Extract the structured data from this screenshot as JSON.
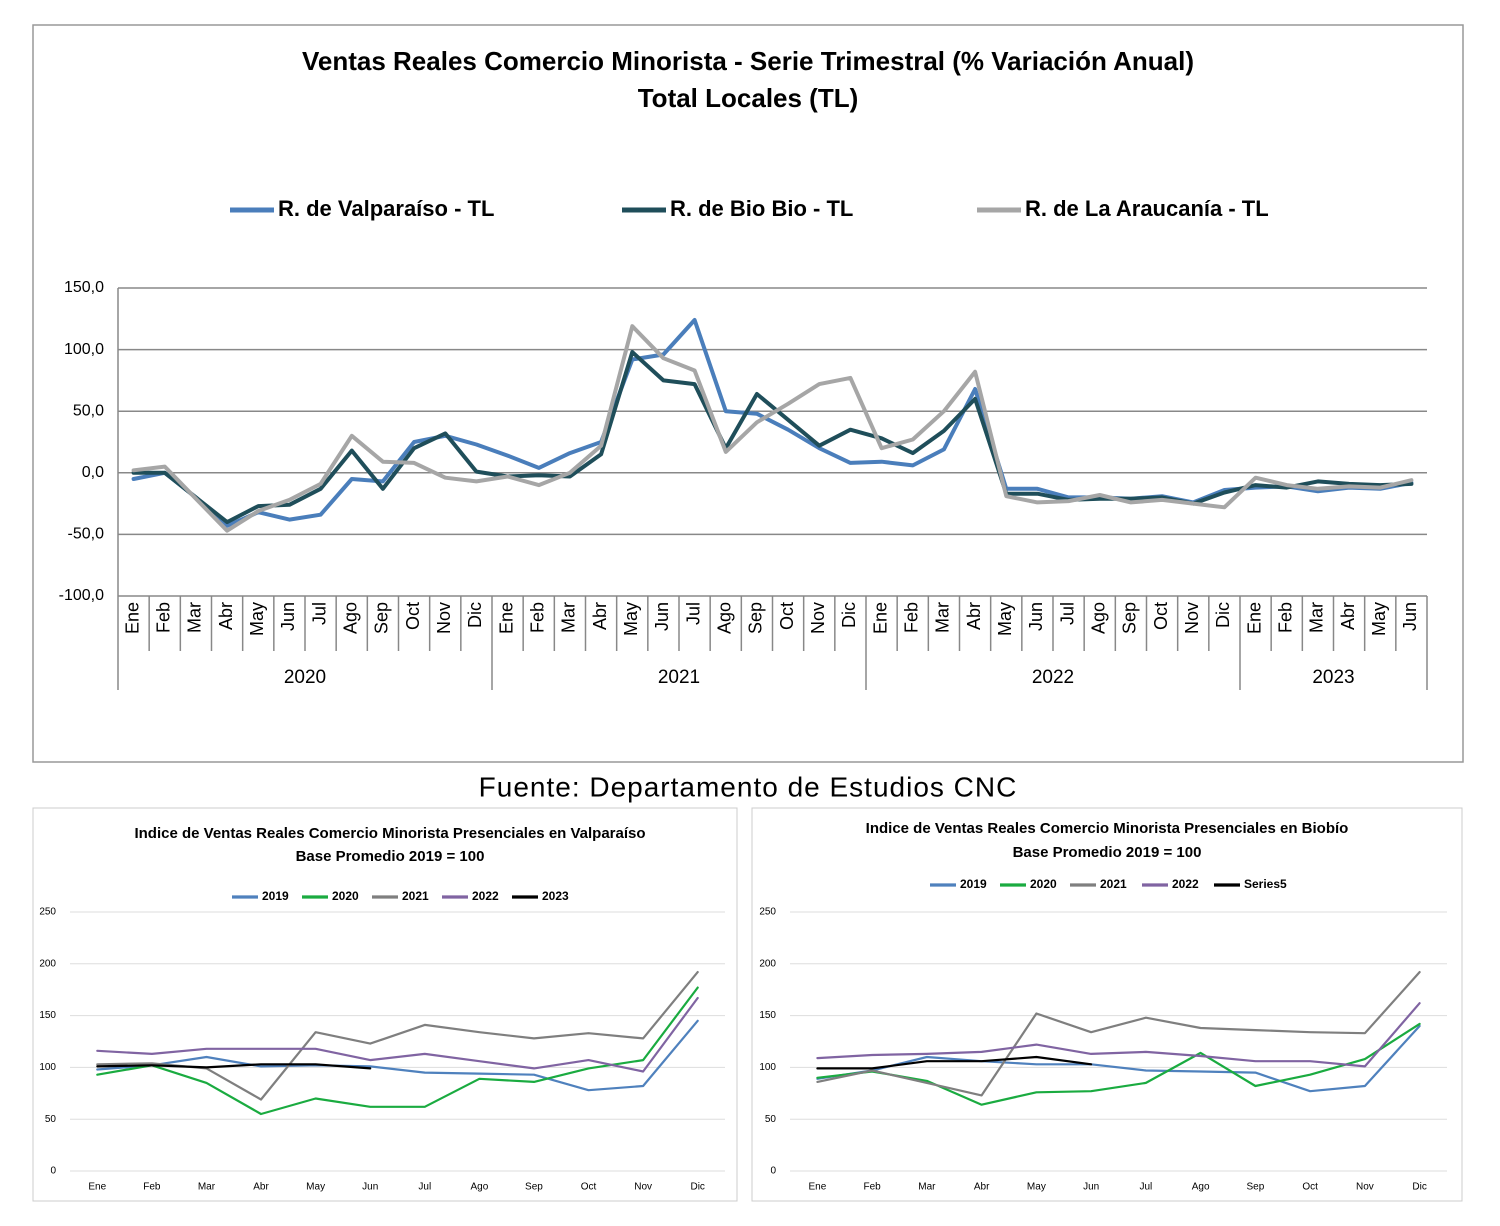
{
  "source": "Fuente: Departamento de Estudios CNC",
  "chart_data": [
    {
      "type": "line",
      "title": "Ventas Reales Comercio Minorista - Serie Trimestral (% Variación Anual)",
      "subtitle": "Total Locales (TL)",
      "category_groups": [
        {
          "label": "2020",
          "categories": [
            "Ene",
            "Feb",
            "Mar",
            "Abr",
            "May",
            "Jun",
            "Jul",
            "Ago",
            "Sep",
            "Oct",
            "Nov",
            "Dic"
          ]
        },
        {
          "label": "2021",
          "categories": [
            "Ene",
            "Feb",
            "Mar",
            "Abr",
            "May",
            "Jun",
            "Jul",
            "Ago",
            "Sep",
            "Oct",
            "Nov",
            "Dic"
          ]
        },
        {
          "label": "2022",
          "categories": [
            "Ene",
            "Feb",
            "Mar",
            "Abr",
            "May",
            "Jun",
            "Jul",
            "Ago",
            "Sep",
            "Oct",
            "Nov",
            "Dic"
          ]
        },
        {
          "label": "2023",
          "categories": [
            "Ene",
            "Feb",
            "Mar",
            "Abr",
            "May",
            "Jun"
          ]
        }
      ],
      "series": [
        {
          "name": "R. de Valparaíso - TL",
          "color": "#4a7ebb",
          "values": [
            -5,
            0,
            -20,
            -43,
            -32,
            -38,
            -34,
            -5,
            -7,
            25,
            30,
            23,
            14,
            4,
            16,
            25,
            92,
            96,
            124,
            50,
            48,
            35,
            20,
            8,
            9,
            6,
            19,
            68,
            -13,
            -13,
            -20,
            -20,
            -21,
            -19,
            -24,
            -14,
            -12,
            -11,
            -15,
            -12,
            -13,
            -8
          ]
        },
        {
          "name": "R. de Bio Bio - TL",
          "color": "#1f4e5a",
          "values": [
            0,
            0,
            -20,
            -40,
            -27,
            -26,
            -13,
            18,
            -13,
            20,
            32,
            1,
            -3,
            -2,
            -3,
            15,
            98,
            75,
            72,
            20,
            64,
            43,
            22,
            35,
            28,
            16,
            34,
            60,
            -17,
            -17,
            -22,
            -21,
            -21,
            -20,
            -25,
            -16,
            -10,
            -12,
            -7,
            -9,
            -10,
            -9
          ]
        },
        {
          "name": "R. de La Araucanía - TL",
          "color": "#a6a6a6",
          "values": [
            2,
            5,
            -21,
            -47,
            -31,
            -22,
            -9,
            30,
            9,
            8,
            -4,
            -7,
            -3,
            -10,
            0,
            22,
            119,
            93,
            83,
            17,
            41,
            56,
            72,
            77,
            20,
            27,
            50,
            82,
            -19,
            -24,
            -23,
            -18,
            -24,
            -22,
            -25,
            -28,
            -4,
            -10,
            -13,
            -11,
            -12,
            -6
          ]
        }
      ],
      "ylim": [
        -100,
        150
      ],
      "yticks": [
        {
          "value": -100,
          "label": "-100,0"
        },
        {
          "value": -50,
          "label": "-50,0"
        },
        {
          "value": 0,
          "label": "0,0"
        },
        {
          "value": 50,
          "label": "50,0"
        },
        {
          "value": 100,
          "label": "100,0"
        },
        {
          "value": 150,
          "label": "150,0"
        }
      ],
      "grid": true,
      "legend": "top"
    },
    {
      "type": "line",
      "title": "Indice de Ventas Reales Comercio Minorista Presenciales en Valparaíso",
      "subtitle": "Base Promedio 2019 = 100",
      "categories": [
        "Ene",
        "Feb",
        "Mar",
        "Abr",
        "May",
        "Jun",
        "Jul",
        "Ago",
        "Sep",
        "Oct",
        "Nov",
        "Dic"
      ],
      "series": [
        {
          "name": "2019",
          "color": "#4f81bd",
          "values": [
            98,
            102,
            110,
            101,
            102,
            101,
            95,
            94,
            93,
            78,
            82,
            145
          ]
        },
        {
          "name": "2020",
          "color": "#1aab40",
          "values": [
            93,
            102,
            85,
            55,
            70,
            62,
            62,
            89,
            86,
            99,
            107,
            177
          ]
        },
        {
          "name": "2021",
          "color": "#7f7f7f",
          "values": [
            103,
            104,
            99,
            69,
            134,
            123,
            141,
            134,
            128,
            133,
            128,
            192
          ]
        },
        {
          "name": "2022",
          "color": "#8064a2",
          "values": [
            116,
            113,
            118,
            118,
            118,
            107,
            113,
            106,
            99,
            107,
            96,
            167
          ]
        },
        {
          "name": "2023",
          "color": "#000000",
          "values": [
            101,
            102,
            100,
            103,
            103,
            99,
            null,
            null,
            null,
            null,
            null,
            null
          ]
        }
      ],
      "ylim": [
        0,
        250
      ],
      "yticks": [
        0,
        50,
        100,
        150,
        200,
        250
      ],
      "grid": true,
      "legend": "top"
    },
    {
      "type": "line",
      "title": "Indice de Ventas Reales Comercio Minorista Presenciales en Biobío",
      "subtitle": "Base Promedio 2019 = 100",
      "categories": [
        "Ene",
        "Feb",
        "Mar",
        "Abr",
        "May",
        "Jun",
        "Jul",
        "Ago",
        "Sep",
        "Oct",
        "Nov",
        "Dic"
      ],
      "series": [
        {
          "name": "2019",
          "color": "#4f81bd",
          "values": [
            89,
            97,
            110,
            106,
            103,
            103,
            97,
            96,
            95,
            77,
            82,
            140
          ]
        },
        {
          "name": "2020",
          "color": "#1aab40",
          "values": [
            90,
            96,
            87,
            64,
            76,
            77,
            85,
            114,
            82,
            93,
            108,
            142
          ]
        },
        {
          "name": "2021",
          "color": "#7f7f7f",
          "values": [
            86,
            97,
            85,
            73,
            152,
            134,
            148,
            138,
            136,
            134,
            133,
            192
          ]
        },
        {
          "name": "2022",
          "color": "#8064a2",
          "values": [
            109,
            112,
            113,
            115,
            122,
            113,
            115,
            111,
            106,
            106,
            101,
            162
          ]
        },
        {
          "name": "Series5",
          "color": "#000000",
          "values": [
            99,
            99,
            106,
            106,
            110,
            103,
            null,
            null,
            null,
            null,
            null,
            null
          ]
        }
      ],
      "ylim": [
        0,
        250
      ],
      "yticks": [
        0,
        50,
        100,
        150,
        200,
        250
      ],
      "grid": true,
      "legend": "top"
    }
  ]
}
